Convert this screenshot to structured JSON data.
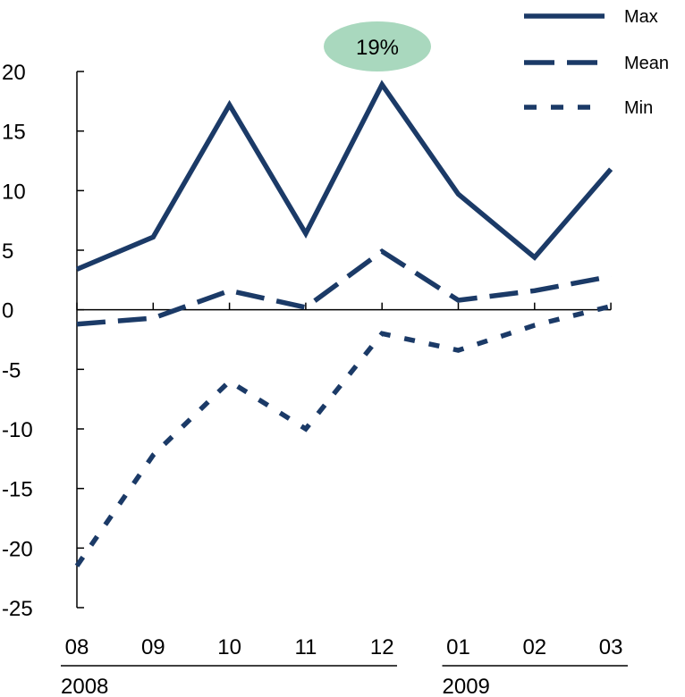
{
  "chart_data": {
    "type": "line",
    "categories": [
      "08",
      "09",
      "10",
      "11",
      "12",
      "01",
      "02",
      "03"
    ],
    "year_groups": [
      {
        "label": "2008",
        "from": 0,
        "to": 4
      },
      {
        "label": "2009",
        "from": 5,
        "to": 7
      }
    ],
    "series": [
      {
        "name": "Max",
        "style": "solid",
        "values": [
          3.4,
          6.1,
          17.2,
          6.4,
          18.9,
          9.7,
          4.4,
          11.8
        ]
      },
      {
        "name": "Mean",
        "style": "long-dash",
        "values": [
          -1.2,
          -0.7,
          1.6,
          0.2,
          4.9,
          0.8,
          1.6,
          2.8
        ]
      },
      {
        "name": "Min",
        "style": "short-dash",
        "values": [
          -21.5,
          -12.2,
          -6.0,
          -10.0,
          -2.0,
          -3.4,
          -1.3,
          0.3
        ]
      }
    ],
    "ylim": [
      -25,
      20
    ],
    "yticks": [
      20,
      15,
      10,
      5,
      0,
      -5,
      -10,
      -15,
      -20,
      -25
    ],
    "grid": false,
    "legend_position": "top-right",
    "annotations": [
      {
        "text": "19%",
        "series": "Max",
        "category": "12",
        "background": "#a9d8be"
      }
    ],
    "colors": {
      "line": "#1b3a67",
      "callout": "#a9d8be"
    }
  }
}
